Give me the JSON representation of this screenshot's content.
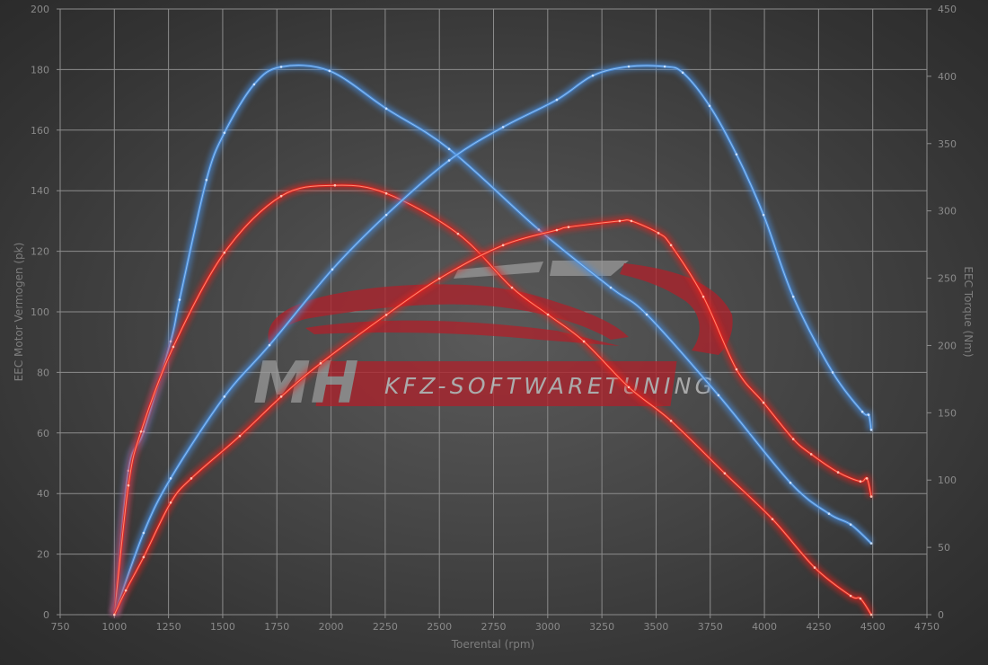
{
  "chart_data": {
    "type": "line",
    "title": "",
    "xlabel": "Toerental (rpm)",
    "ylabel": "EEC Motor Vermogen (pk)",
    "y2label": "EEC Torque (Nm)",
    "xlim": [
      750,
      4750
    ],
    "ylim": [
      0,
      200
    ],
    "y2lim": [
      0,
      450
    ],
    "xticks": [
      "750",
      "1000",
      "1250",
      "1500",
      "1750",
      "2000",
      "2250",
      "2500",
      "2750",
      "3000",
      "3250",
      "3500",
      "3750",
      "4000",
      "4250",
      "4500",
      "4750"
    ],
    "yticks": [
      "0",
      "20",
      "40",
      "60",
      "80",
      "100",
      "120",
      "140",
      "160",
      "180",
      "200"
    ],
    "y2ticks": [
      "0",
      "50",
      "100",
      "150",
      "200",
      "250",
      "300",
      "350",
      "400",
      "450"
    ],
    "grid": true,
    "legend": "none",
    "colors": {
      "tuned": "#4a8fe0",
      "stock": "#e8201c"
    },
    "series": [
      {
        "axis": "right",
        "color": "tuned",
        "x": [
          1000,
          1065,
          1135,
          1260,
          1301,
          1425,
          1508,
          1645,
          1770,
          1993,
          2255,
          2545,
          2959,
          3291,
          3457,
          3788,
          4120,
          4298,
          4398,
          4493
        ],
        "y": [
          0,
          107,
          136,
          203,
          234,
          323,
          358,
          394,
          407,
          404,
          376,
          346,
          286,
          243,
          223,
          163,
          98,
          75,
          67,
          53
        ]
      },
      {
        "axis": "right",
        "color": "stock",
        "x": [
          1000,
          1065,
          1123,
          1272,
          1508,
          1770,
          2018,
          2255,
          2586,
          2835,
          3001,
          3167,
          3374,
          3569,
          3817,
          4037,
          4232,
          4398,
          4443,
          4493
        ],
        "y": [
          0,
          96,
          136,
          199,
          269,
          311,
          319,
          313,
          283,
          243,
          223,
          203,
          169,
          144,
          105,
          71,
          35,
          14,
          12,
          0
        ]
      },
      {
        "axis": "left",
        "color": "tuned",
        "x": [
          1000,
          1135,
          1260,
          1508,
          1716,
          2006,
          2255,
          2545,
          2794,
          3042,
          3208,
          3374,
          3540,
          3623,
          3747,
          3871,
          3996,
          4133,
          4315,
          4452,
          4481,
          4493
        ],
        "y": [
          0,
          27,
          45,
          72,
          89,
          114,
          132,
          150,
          161,
          170,
          178,
          181,
          181,
          179,
          168,
          152,
          132,
          105,
          80,
          67,
          66,
          61
        ]
      },
      {
        "axis": "left",
        "color": "stock",
        "x": [
          1000,
          1053,
          1135,
          1260,
          1355,
          1579,
          1770,
          1952,
          2255,
          2500,
          2794,
          3042,
          3096,
          3332,
          3386,
          3511,
          3569,
          3718,
          3871,
          3996,
          4133,
          4216,
          4340,
          4443,
          4473,
          4493
        ],
        "y": [
          0,
          8,
          19,
          37,
          45,
          59,
          72,
          83,
          99,
          111,
          122,
          127,
          128,
          130,
          130,
          126,
          122,
          105,
          81,
          70,
          58,
          53,
          47,
          44,
          45,
          39
        ]
      }
    ]
  },
  "watermark": {
    "logo_letters": "MH",
    "text": "KFZ-SOFTWARETUNING"
  }
}
